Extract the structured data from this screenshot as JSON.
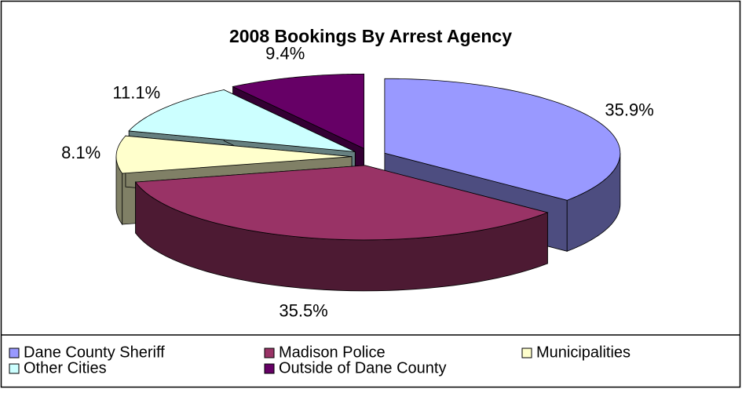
{
  "chart_data": {
    "type": "pie3d",
    "title": "2008 Bookings By Arrest Agency",
    "categories": [
      "Dane County Sheriff",
      "Madison Police",
      "Municipalities",
      "Other Cities",
      "Outside of Dane County"
    ],
    "values": [
      35.9,
      35.5,
      8.1,
      11.1,
      9.4
    ],
    "value_labels": [
      "35.9%",
      "35.5%",
      "8.1%",
      "11.1%",
      "9.4%"
    ],
    "colors": [
      "#9999ff",
      "#993366",
      "#ffffcc",
      "#ccffff",
      "#660066"
    ],
    "legend": "bottom"
  }
}
